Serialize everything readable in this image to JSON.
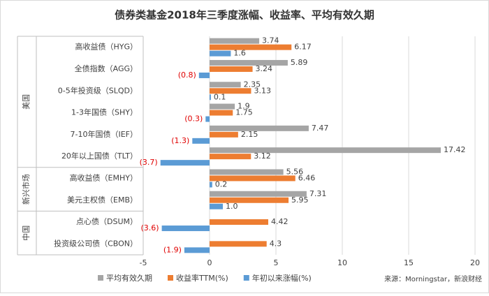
{
  "chart_data": {
    "type": "hbar",
    "title": "债券类基金2018年三季度涨幅、收益率、平均有效久期",
    "source": "来源：Morningstar，新浪财经",
    "groups": [
      {
        "name": "美国",
        "categories": [
          "高收益债（HYG）",
          "全债指数（AGG）",
          "0-5年投资级（SLQD）",
          "1-3年国债（SHY）",
          "7-10年国债（IEF）",
          "20年以上国债（TLT）"
        ]
      },
      {
        "name": "新兴市场",
        "categories": [
          "高收益债（EMHY）",
          "美元主权债（EMB）"
        ]
      },
      {
        "name": "中国",
        "categories": [
          "点心债（DSUM）",
          "投资级公司债（CBON）"
        ]
      }
    ],
    "series": [
      {
        "name": "平均有效久期",
        "color": "#a5a5a5",
        "values": [
          3.74,
          5.89,
          2.35,
          1.9,
          7.47,
          17.42,
          5.56,
          7.31,
          null,
          null
        ]
      },
      {
        "name": "收益率TTM(%)",
        "color": "#ed7d31",
        "values": [
          6.17,
          3.24,
          3.13,
          1.75,
          2.15,
          3.12,
          6.46,
          5.95,
          4.42,
          4.3
        ]
      },
      {
        "name": "年初以来涨幅(%)",
        "color": "#5b9bd5",
        "values": [
          1.6,
          -0.8,
          0.1,
          -0.3,
          -1.3,
          -3.7,
          0.2,
          1.0,
          -3.6,
          -1.9
        ],
        "value_labels": [
          "1.6",
          "(0.8)",
          "0.1",
          "(0.3)",
          "(1.3)",
          "(3.7)",
          "0.2",
          "1.0",
          "(3.6)",
          "(1.9)"
        ]
      }
    ],
    "negative_label_color": "#e00000",
    "xlim": [
      -5,
      20
    ],
    "xticks": [
      -5,
      0,
      5,
      10,
      15,
      20
    ],
    "grid": true,
    "legend": "bottom"
  }
}
